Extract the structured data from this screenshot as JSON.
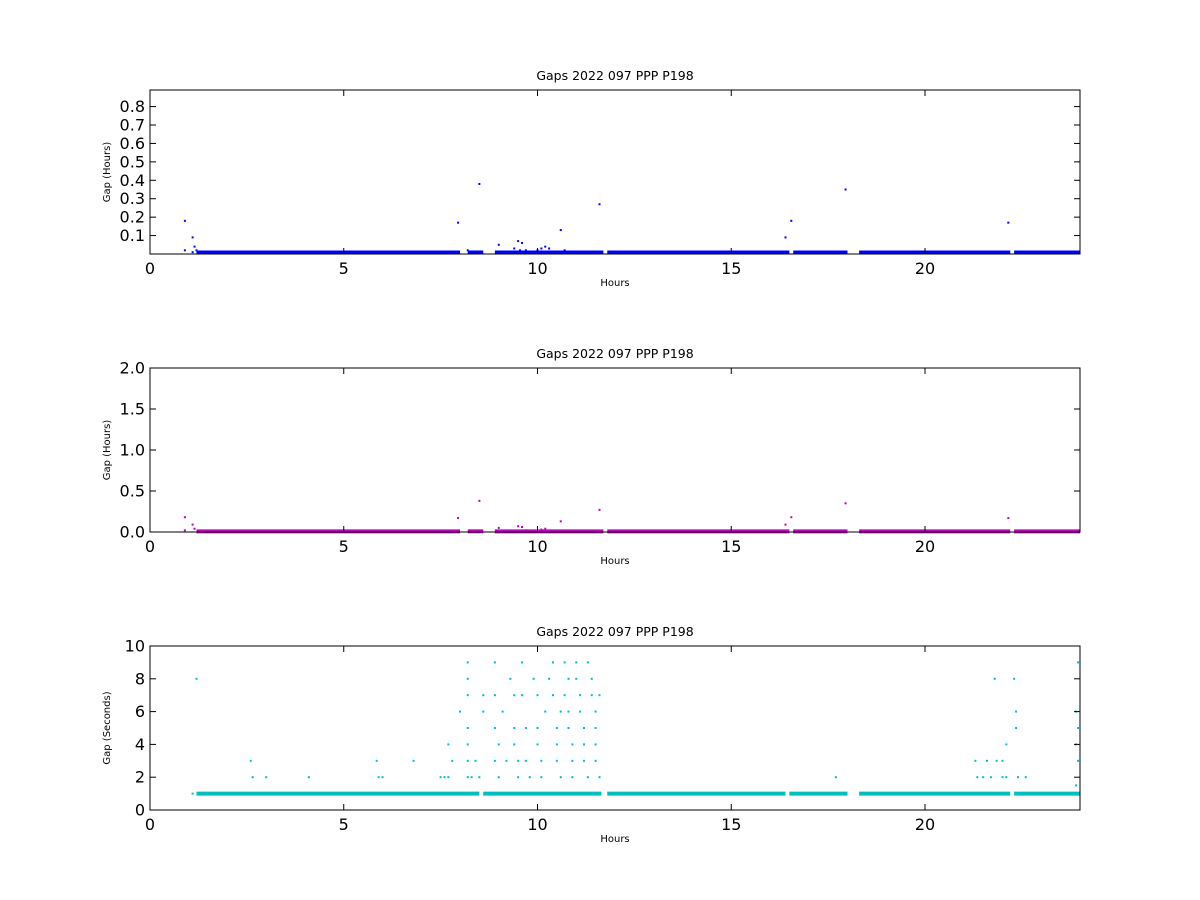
{
  "chart_data": [
    {
      "type": "scatter",
      "title": "Gaps 2022 097 PPP  P198",
      "xlabel": "Hours",
      "ylabel": "Gap (Hours)",
      "xlim": [
        0,
        24
      ],
      "ylim": [
        0,
        0.89
      ],
      "xticks": [
        "0",
        "5",
        "10",
        "15",
        "20"
      ],
      "yticks": [
        "0.1",
        "0.2",
        "0.3",
        "0.4",
        "0.5",
        "0.6",
        "0.7",
        "0.8"
      ],
      "color": "#0000ff",
      "grid": false,
      "baseline": {
        "y": 0.0083,
        "segments": [
          [
            1.2,
            8.0
          ],
          [
            8.2,
            8.6
          ],
          [
            8.9,
            11.7
          ],
          [
            11.8,
            16.5
          ],
          [
            16.6,
            18.0
          ],
          [
            18.3,
            22.2
          ],
          [
            22.3,
            24.0
          ]
        ]
      },
      "points": [
        [
          0.9,
          0.18
        ],
        [
          0.9,
          0.02
        ],
        [
          1.1,
          0.09
        ],
        [
          1.1,
          0.01
        ],
        [
          1.15,
          0.04
        ],
        [
          1.2,
          0.02
        ],
        [
          7.95,
          0.17
        ],
        [
          8.5,
          0.38
        ],
        [
          8.2,
          0.02
        ],
        [
          9.0,
          0.05
        ],
        [
          9.4,
          0.03
        ],
        [
          9.5,
          0.07
        ],
        [
          9.55,
          0.02
        ],
        [
          9.6,
          0.06
        ],
        [
          9.7,
          0.02
        ],
        [
          10.0,
          0.02
        ],
        [
          10.1,
          0.03
        ],
        [
          10.2,
          0.04
        ],
        [
          10.3,
          0.03
        ],
        [
          10.6,
          0.13
        ],
        [
          10.7,
          0.02
        ],
        [
          11.0,
          0.01
        ],
        [
          11.6,
          0.27
        ],
        [
          16.4,
          0.09
        ],
        [
          16.55,
          0.18
        ],
        [
          17.95,
          0.35
        ],
        [
          22.15,
          0.17
        ]
      ]
    },
    {
      "type": "scatter",
      "title": "Gaps 2022 097 PPP  P198",
      "xlabel": "Hours",
      "ylabel": "Gap (Hours)",
      "xlim": [
        0,
        24
      ],
      "ylim": [
        0,
        2.0
      ],
      "xticks": [
        "0",
        "5",
        "10",
        "15",
        "20"
      ],
      "yticks": [
        "0.0",
        "0.5",
        "1.0",
        "1.5",
        "2.0"
      ],
      "color": "#bf00bf",
      "grid": false,
      "baseline": {
        "y": 0.0083,
        "segments": [
          [
            1.2,
            8.0
          ],
          [
            8.2,
            8.6
          ],
          [
            8.9,
            11.7
          ],
          [
            11.8,
            16.5
          ],
          [
            16.6,
            18.0
          ],
          [
            18.3,
            22.2
          ],
          [
            22.3,
            24.0
          ]
        ]
      },
      "points": [
        [
          0.9,
          0.18
        ],
        [
          0.9,
          0.02
        ],
        [
          1.1,
          0.09
        ],
        [
          1.15,
          0.04
        ],
        [
          7.95,
          0.17
        ],
        [
          8.5,
          0.38
        ],
        [
          9.0,
          0.05
        ],
        [
          9.5,
          0.07
        ],
        [
          9.6,
          0.06
        ],
        [
          9.7,
          0.02
        ],
        [
          10.1,
          0.03
        ],
        [
          10.2,
          0.04
        ],
        [
          10.6,
          0.13
        ],
        [
          11.6,
          0.27
        ],
        [
          16.4,
          0.09
        ],
        [
          16.55,
          0.18
        ],
        [
          17.95,
          0.35
        ],
        [
          22.15,
          0.17
        ]
      ]
    },
    {
      "type": "scatter",
      "title": "Gaps 2022 097 PPP  P198",
      "xlabel": "Hours",
      "ylabel": "Gap (Seconds)",
      "xlim": [
        0,
        24
      ],
      "ylim": [
        0,
        10
      ],
      "xticks": [
        "0",
        "5",
        "10",
        "15",
        "20"
      ],
      "yticks": [
        "0",
        "2",
        "4",
        "6",
        "8",
        "10"
      ],
      "color": "#00bfbf",
      "grid": false,
      "baseline": {
        "y": 1,
        "segments": [
          [
            1.2,
            8.5
          ],
          [
            8.6,
            11.65
          ],
          [
            11.8,
            16.4
          ],
          [
            16.5,
            18.0
          ],
          [
            18.3,
            22.2
          ],
          [
            22.3,
            24.0
          ]
        ]
      },
      "points": [
        [
          1.1,
          1
        ],
        [
          1.2,
          8
        ],
        [
          2.6,
          3
        ],
        [
          2.65,
          2
        ],
        [
          3.0,
          2
        ],
        [
          4.1,
          2
        ],
        [
          5.85,
          3
        ],
        [
          5.9,
          2
        ],
        [
          6.0,
          2
        ],
        [
          6.8,
          3
        ],
        [
          7.5,
          2
        ],
        [
          7.6,
          2
        ],
        [
          7.7,
          2
        ],
        [
          7.7,
          4
        ],
        [
          7.8,
          3
        ],
        [
          8.0,
          6
        ],
        [
          8.2,
          9
        ],
        [
          8.2,
          8
        ],
        [
          8.2,
          7
        ],
        [
          8.2,
          5
        ],
        [
          8.2,
          4
        ],
        [
          8.2,
          3
        ],
        [
          8.2,
          2
        ],
        [
          8.3,
          2
        ],
        [
          8.4,
          3
        ],
        [
          8.5,
          2
        ],
        [
          8.6,
          7
        ],
        [
          8.6,
          6
        ],
        [
          8.9,
          9
        ],
        [
          8.9,
          7
        ],
        [
          8.9,
          5
        ],
        [
          8.9,
          3
        ],
        [
          9.0,
          2
        ],
        [
          9.0,
          4
        ],
        [
          9.1,
          6
        ],
        [
          9.2,
          3
        ],
        [
          9.3,
          8
        ],
        [
          9.4,
          7
        ],
        [
          9.4,
          5
        ],
        [
          9.4,
          4
        ],
        [
          9.5,
          3
        ],
        [
          9.5,
          2
        ],
        [
          9.6,
          9
        ],
        [
          9.6,
          7
        ],
        [
          9.7,
          5
        ],
        [
          9.7,
          3
        ],
        [
          9.8,
          2
        ],
        [
          9.9,
          8
        ],
        [
          10.0,
          7
        ],
        [
          10.0,
          5
        ],
        [
          10.0,
          4
        ],
        [
          10.1,
          3
        ],
        [
          10.1,
          2
        ],
        [
          10.2,
          6
        ],
        [
          10.3,
          8
        ],
        [
          10.4,
          9
        ],
        [
          10.4,
          7
        ],
        [
          10.5,
          5
        ],
        [
          10.5,
          4
        ],
        [
          10.5,
          3
        ],
        [
          10.6,
          2
        ],
        [
          10.6,
          6
        ],
        [
          10.7,
          9
        ],
        [
          10.7,
          7
        ],
        [
          10.8,
          8
        ],
        [
          10.8,
          6
        ],
        [
          10.8,
          5
        ],
        [
          10.9,
          4
        ],
        [
          10.9,
          3
        ],
        [
          10.9,
          2
        ],
        [
          11.0,
          9
        ],
        [
          11.0,
          8
        ],
        [
          11.1,
          7
        ],
        [
          11.1,
          6
        ],
        [
          11.2,
          5
        ],
        [
          11.2,
          4
        ],
        [
          11.2,
          3
        ],
        [
          11.3,
          2
        ],
        [
          11.3,
          9
        ],
        [
          11.4,
          8
        ],
        [
          11.4,
          7
        ],
        [
          11.5,
          6
        ],
        [
          11.5,
          5
        ],
        [
          11.5,
          4
        ],
        [
          11.5,
          3
        ],
        [
          11.6,
          2
        ],
        [
          11.6,
          7
        ],
        [
          17.7,
          2
        ],
        [
          21.3,
          3
        ],
        [
          21.35,
          2
        ],
        [
          21.5,
          2
        ],
        [
          21.6,
          3
        ],
        [
          21.7,
          2
        ],
        [
          21.8,
          8
        ],
        [
          21.85,
          3
        ],
        [
          22.0,
          2
        ],
        [
          22.0,
          3
        ],
        [
          22.1,
          4
        ],
        [
          22.1,
          2
        ],
        [
          22.3,
          8
        ],
        [
          22.35,
          6
        ],
        [
          22.35,
          5
        ],
        [
          22.4,
          2
        ],
        [
          22.6,
          2
        ],
        [
          23.95,
          9
        ],
        [
          23.9,
          6
        ],
        [
          23.9,
          4
        ],
        [
          23.95,
          5
        ],
        [
          23.95,
          3
        ],
        [
          23.9,
          1.5
        ]
      ]
    }
  ]
}
